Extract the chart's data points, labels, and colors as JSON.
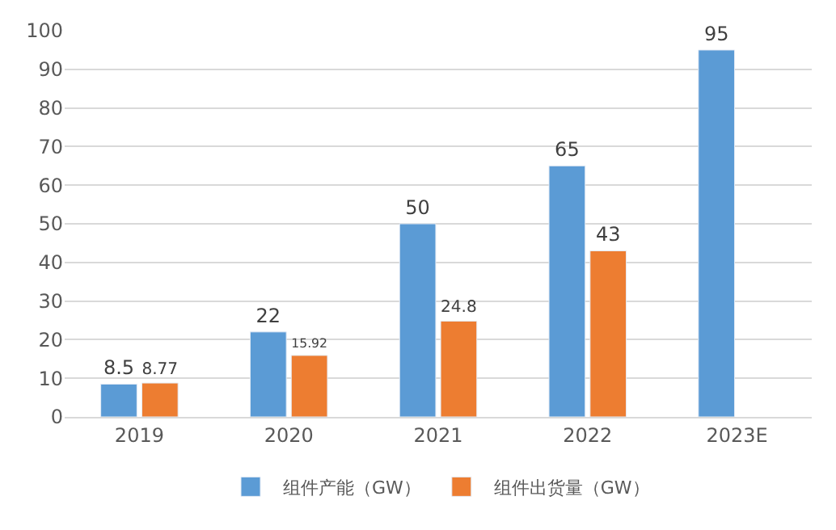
{
  "chart_data": {
    "type": "bar",
    "categories": [
      "2019",
      "2020",
      "2021",
      "2022",
      "2023E"
    ],
    "series": [
      {
        "name": "组件产能（GW）",
        "color": "#5b9bd5",
        "values": [
          8.5,
          22,
          50,
          65,
          95
        ]
      },
      {
        "name": "组件出货量（GW）",
        "color": "#ed7d31",
        "values": [
          8.77,
          15.92,
          24.8,
          43,
          null
        ]
      }
    ],
    "ylim": [
      0,
      100
    ],
    "yticks": [
      0,
      10,
      20,
      30,
      40,
      50,
      60,
      70,
      80,
      90,
      100
    ],
    "grid": "y",
    "legend": "bottom",
    "data_labels": true
  }
}
